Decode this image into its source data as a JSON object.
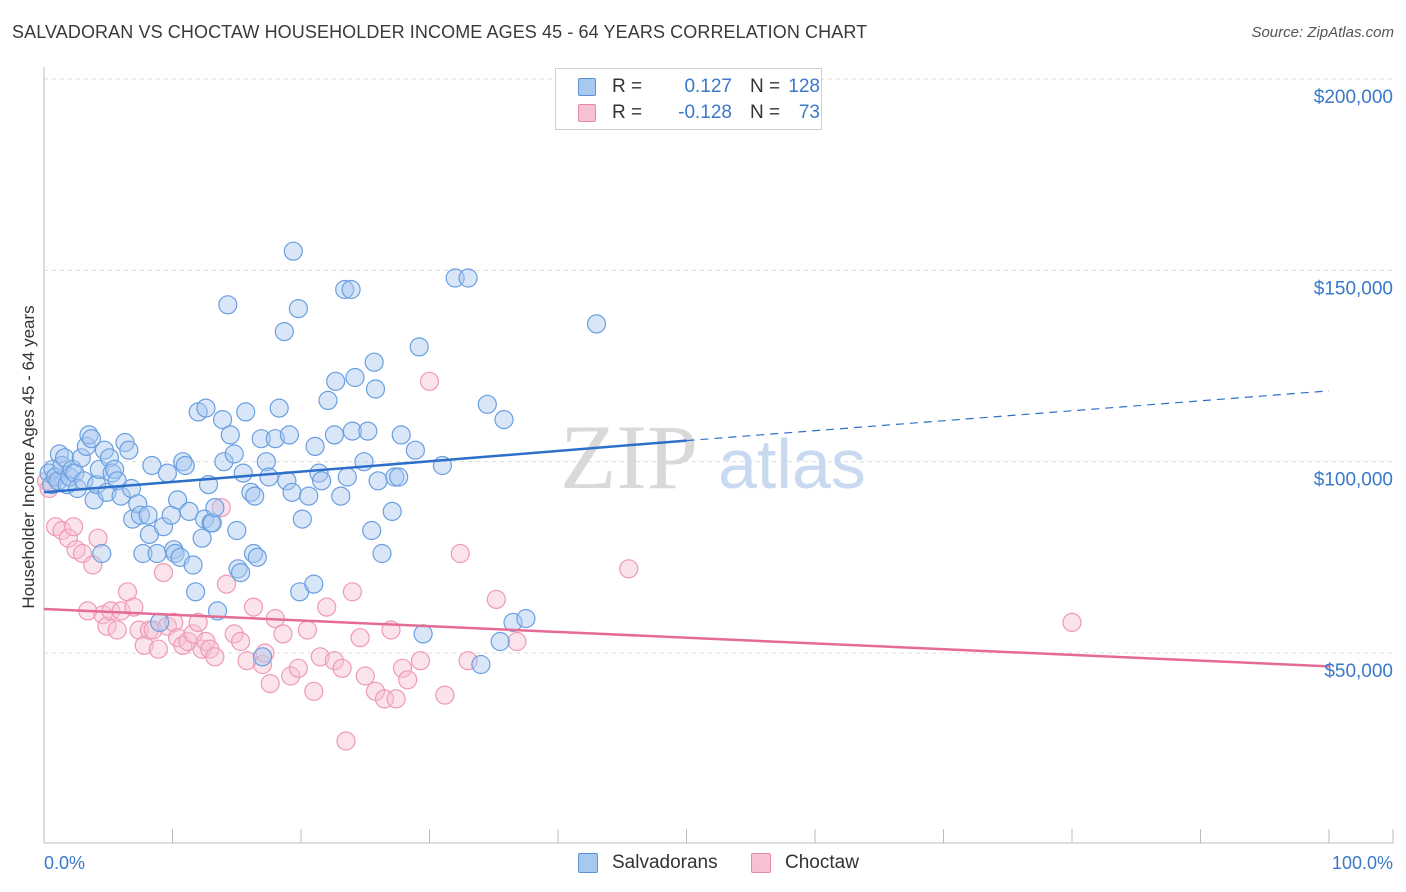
{
  "header": {
    "title": "SALVADORAN VS CHOCTAW HOUSEHOLDER INCOME AGES 45 - 64 YEARS CORRELATION CHART",
    "source": "Source: ZipAtlas.com"
  },
  "watermark": {
    "zip": "ZIP",
    "atlas": "atlas"
  },
  "legend": {
    "r_label": "R =",
    "n_label": "N =",
    "rows": [
      {
        "r": "0.127",
        "n": "128",
        "color": "#a9c8f0",
        "border": "#5b8fd6"
      },
      {
        "r": "-0.128",
        "n": "73",
        "color": "#f6c2d2",
        "border": "#e58aa6"
      }
    ]
  },
  "bottom_legend": [
    {
      "label": "Salvadorans",
      "color": "#a9c8f0",
      "border": "#5b8fd6"
    },
    {
      "label": "Choctaw",
      "color": "#f6c2d2",
      "border": "#e58aa6"
    }
  ],
  "axes": {
    "ylabel": "Householder Income Ages 45 - 64 years",
    "x_min_label": "0.0%",
    "x_max_label": "100.0%",
    "y_tick_labels": [
      "$50,000",
      "$100,000",
      "$150,000",
      "$200,000"
    ]
  },
  "chart_data": {
    "type": "scatter",
    "title": "SALVADORAN VS CHOCTAW HOUSEHOLDER INCOME AGES 45 - 64 YEARS CORRELATION CHART",
    "xlabel": "",
    "ylabel": "Householder Income Ages 45 - 64 years",
    "xlim": [
      0,
      100
    ],
    "ylim": [
      5000,
      210000
    ],
    "y_ticks": [
      50000,
      100000,
      150000,
      200000
    ],
    "grid": true,
    "legend_position": "top-center",
    "colors": {
      "Salvadorans": "#6a9fe0",
      "Choctaw": "#ef9ab5",
      "blue_line": "#2e6fc9",
      "pink_line": "#e56b96"
    },
    "series": [
      {
        "name": "Salvadorans",
        "r": 0.127,
        "n": 128,
        "trend": {
          "x": [
            0,
            50
          ],
          "y": [
            92000,
            105500
          ],
          "dashed_extension": {
            "x": [
              50,
              100
            ],
            "y": [
              105500,
              118500
            ]
          }
        },
        "points": [
          [
            0.4,
            97000
          ],
          [
            0.6,
            94000
          ],
          [
            0.7,
            98000
          ],
          [
            0.9,
            96000
          ],
          [
            1.1,
            95000
          ],
          [
            1.2,
            102000
          ],
          [
            1.4,
            99000
          ],
          [
            1.6,
            101000
          ],
          [
            1.8,
            94000
          ],
          [
            2.0,
            96000
          ],
          [
            2.2,
            98000
          ],
          [
            2.4,
            97000
          ],
          [
            2.6,
            93000
          ],
          [
            2.9,
            101000
          ],
          [
            3.1,
            95000
          ],
          [
            3.3,
            104000
          ],
          [
            3.5,
            107000
          ],
          [
            3.7,
            106000
          ],
          [
            3.9,
            90000
          ],
          [
            4.1,
            94000
          ],
          [
            4.3,
            98000
          ],
          [
            4.5,
            76000
          ],
          [
            4.7,
            103000
          ],
          [
            4.9,
            92000
          ],
          [
            5.1,
            101000
          ],
          [
            5.3,
            97000
          ],
          [
            5.5,
            98000
          ],
          [
            5.7,
            95000
          ],
          [
            6.0,
            91000
          ],
          [
            6.3,
            105000
          ],
          [
            6.6,
            103000
          ],
          [
            6.8,
            93000
          ],
          [
            6.9,
            85000
          ],
          [
            7.3,
            89000
          ],
          [
            7.5,
            86000
          ],
          [
            7.7,
            76000
          ],
          [
            8.1,
            86000
          ],
          [
            8.2,
            81000
          ],
          [
            8.4,
            99000
          ],
          [
            8.8,
            76000
          ],
          [
            9.0,
            58000
          ],
          [
            9.3,
            83000
          ],
          [
            9.6,
            97000
          ],
          [
            9.9,
            86000
          ],
          [
            10.1,
            77000
          ],
          [
            10.2,
            76000
          ],
          [
            10.4,
            90000
          ],
          [
            10.6,
            75000
          ],
          [
            10.8,
            100000
          ],
          [
            11.0,
            99000
          ],
          [
            11.3,
            87000
          ],
          [
            11.6,
            73000
          ],
          [
            11.8,
            66000
          ],
          [
            12.0,
            113000
          ],
          [
            12.3,
            80000
          ],
          [
            12.5,
            85000
          ],
          [
            12.6,
            114000
          ],
          [
            12.8,
            94000
          ],
          [
            13.0,
            84000
          ],
          [
            13.1,
            84000
          ],
          [
            13.3,
            88000
          ],
          [
            13.5,
            61000
          ],
          [
            13.9,
            111000
          ],
          [
            14.0,
            100000
          ],
          [
            14.3,
            141000
          ],
          [
            14.5,
            107000
          ],
          [
            14.8,
            102000
          ],
          [
            15.0,
            82000
          ],
          [
            15.1,
            72000
          ],
          [
            15.3,
            71000
          ],
          [
            15.5,
            97000
          ],
          [
            15.7,
            113000
          ],
          [
            16.1,
            92000
          ],
          [
            16.3,
            76000
          ],
          [
            16.4,
            91000
          ],
          [
            16.6,
            75000
          ],
          [
            16.9,
            106000
          ],
          [
            17.0,
            49000
          ],
          [
            17.3,
            100000
          ],
          [
            17.5,
            96000
          ],
          [
            18.0,
            106000
          ],
          [
            18.3,
            114000
          ],
          [
            18.7,
            134000
          ],
          [
            18.9,
            95000
          ],
          [
            19.1,
            107000
          ],
          [
            19.3,
            92000
          ],
          [
            19.4,
            155000
          ],
          [
            19.8,
            140000
          ],
          [
            19.9,
            66000
          ],
          [
            20.1,
            85000
          ],
          [
            20.6,
            91000
          ],
          [
            21.0,
            68000
          ],
          [
            21.1,
            104000
          ],
          [
            21.4,
            97000
          ],
          [
            21.6,
            95000
          ],
          [
            22.1,
            116000
          ],
          [
            22.6,
            107000
          ],
          [
            22.7,
            121000
          ],
          [
            23.1,
            91000
          ],
          [
            23.4,
            145000
          ],
          [
            23.6,
            96000
          ],
          [
            23.9,
            145000
          ],
          [
            24.0,
            108000
          ],
          [
            24.2,
            122000
          ],
          [
            24.9,
            100000
          ],
          [
            25.2,
            108000
          ],
          [
            25.5,
            82000
          ],
          [
            25.7,
            126000
          ],
          [
            25.8,
            119000
          ],
          [
            26.0,
            95000
          ],
          [
            26.3,
            76000
          ],
          [
            27.1,
            87000
          ],
          [
            27.3,
            96000
          ],
          [
            27.6,
            96000
          ],
          [
            27.8,
            107000
          ],
          [
            28.9,
            103000
          ],
          [
            29.2,
            130000
          ],
          [
            29.5,
            55000
          ],
          [
            31.0,
            99000
          ],
          [
            32.0,
            148000
          ],
          [
            33.0,
            148000
          ],
          [
            34.0,
            47000
          ],
          [
            34.5,
            115000
          ],
          [
            35.5,
            53000
          ],
          [
            35.8,
            111000
          ],
          [
            36.5,
            58000
          ],
          [
            37.5,
            59000
          ],
          [
            43.0,
            136000
          ]
        ]
      },
      {
        "name": "Choctaw",
        "r": -0.128,
        "n": 73,
        "trend": {
          "x": [
            0,
            100
          ],
          "y": [
            61500,
            46500
          ]
        },
        "points": [
          [
            0.2,
            95000
          ],
          [
            0.4,
            93000
          ],
          [
            0.9,
            83000
          ],
          [
            1.4,
            82000
          ],
          [
            1.9,
            80000
          ],
          [
            2.3,
            83000
          ],
          [
            2.5,
            77000
          ],
          [
            3.0,
            76000
          ],
          [
            3.4,
            61000
          ],
          [
            3.8,
            73000
          ],
          [
            4.2,
            80000
          ],
          [
            4.6,
            60000
          ],
          [
            4.9,
            57000
          ],
          [
            5.2,
            61000
          ],
          [
            5.7,
            56000
          ],
          [
            6.0,
            61000
          ],
          [
            6.5,
            66000
          ],
          [
            7.0,
            62000
          ],
          [
            7.4,
            56000
          ],
          [
            7.8,
            52000
          ],
          [
            8.2,
            56000
          ],
          [
            8.5,
            56000
          ],
          [
            8.9,
            51000
          ],
          [
            9.3,
            71000
          ],
          [
            9.6,
            57000
          ],
          [
            10.1,
            58000
          ],
          [
            10.4,
            54000
          ],
          [
            10.8,
            52000
          ],
          [
            11.2,
            53000
          ],
          [
            11.6,
            55000
          ],
          [
            12.0,
            58000
          ],
          [
            12.3,
            51000
          ],
          [
            12.6,
            53000
          ],
          [
            12.9,
            51000
          ],
          [
            13.3,
            49000
          ],
          [
            13.8,
            88000
          ],
          [
            14.2,
            68000
          ],
          [
            14.8,
            55000
          ],
          [
            15.3,
            53000
          ],
          [
            15.8,
            48000
          ],
          [
            16.3,
            62000
          ],
          [
            17.0,
            47000
          ],
          [
            17.2,
            50000
          ],
          [
            17.6,
            42000
          ],
          [
            18.0,
            59000
          ],
          [
            18.6,
            55000
          ],
          [
            19.2,
            44000
          ],
          [
            19.8,
            46000
          ],
          [
            20.5,
            56000
          ],
          [
            21.0,
            40000
          ],
          [
            21.5,
            49000
          ],
          [
            22.0,
            62000
          ],
          [
            22.6,
            48000
          ],
          [
            23.2,
            46000
          ],
          [
            23.5,
            27000
          ],
          [
            24.0,
            66000
          ],
          [
            24.6,
            54000
          ],
          [
            25.0,
            44000
          ],
          [
            25.8,
            40000
          ],
          [
            26.5,
            38000
          ],
          [
            27.0,
            56000
          ],
          [
            27.4,
            38000
          ],
          [
            27.9,
            46000
          ],
          [
            28.3,
            43000
          ],
          [
            29.3,
            48000
          ],
          [
            30.0,
            121000
          ],
          [
            31.2,
            39000
          ],
          [
            32.4,
            76000
          ],
          [
            33.0,
            48000
          ],
          [
            35.2,
            64000
          ],
          [
            36.8,
            53000
          ],
          [
            45.5,
            72000
          ],
          [
            80.0,
            58000
          ]
        ]
      }
    ]
  }
}
